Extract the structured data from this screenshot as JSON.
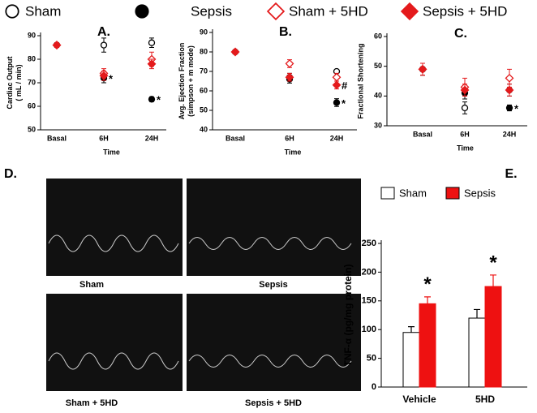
{
  "chart_data": [
    {
      "type": "point",
      "title": "A.",
      "ylabel": [
        "Cardiac Output",
        "( mL / min)"
      ],
      "xlabel": "Time",
      "categories": [
        "Basal",
        "6H",
        "24H"
      ],
      "ylim": [
        50,
        90
      ],
      "yticks": [
        50,
        60,
        70,
        80,
        90
      ],
      "series": [
        {
          "name": "Sham",
          "color": "#000000",
          "marker": "circle-open",
          "values": [
            86,
            86,
            87
          ],
          "errors": [
            1,
            3,
            2
          ]
        },
        {
          "name": "Sepsis",
          "color": "#000000",
          "marker": "circle",
          "values": [
            86,
            72,
            63
          ],
          "errors": [
            1,
            2,
            1
          ]
        },
        {
          "name": "Sham + 5HD",
          "color": "#e41a1c",
          "marker": "diamond-open",
          "values": [
            86,
            74,
            80
          ],
          "errors": [
            1,
            2,
            3
          ]
        },
        {
          "name": "Sepsis + 5HD",
          "color": "#e41a1c",
          "marker": "diamond",
          "values": [
            86,
            73,
            78
          ],
          "errors": [
            1,
            2,
            2
          ]
        }
      ],
      "annotations": [
        {
          "text": "*",
          "series": "Sepsis",
          "category": "6H"
        },
        {
          "text": "*",
          "series": "Sepsis",
          "category": "24H"
        }
      ]
    },
    {
      "type": "point",
      "title": "B.",
      "ylabel": [
        "Avg. Ejection Fraction",
        "(simpson + m mode)"
      ],
      "xlabel": "Time",
      "categories": [
        "Basal",
        "6H",
        "24H"
      ],
      "ylim": [
        40,
        90
      ],
      "yticks": [
        40,
        50,
        60,
        70,
        80,
        90
      ],
      "series": [
        {
          "name": "Sham",
          "color": "#000000",
          "marker": "circle-open",
          "values": [
            80,
            67,
            70
          ],
          "errors": [
            1,
            2,
            1
          ]
        },
        {
          "name": "Sepsis",
          "color": "#000000",
          "marker": "circle",
          "values": [
            80,
            66,
            54
          ],
          "errors": [
            1,
            2,
            2
          ]
        },
        {
          "name": "Sham + 5HD",
          "color": "#e41a1c",
          "marker": "diamond-open",
          "values": [
            80,
            74,
            67
          ],
          "errors": [
            1,
            2,
            2
          ]
        },
        {
          "name": "Sepsis + 5HD",
          "color": "#e41a1c",
          "marker": "diamond",
          "values": [
            80,
            67,
            63
          ],
          "errors": [
            1,
            2,
            2
          ]
        }
      ],
      "annotations": [
        {
          "text": "#",
          "series": "Sepsis + 5HD",
          "category": "24H"
        },
        {
          "text": "*",
          "series": "Sepsis",
          "category": "24H"
        }
      ]
    },
    {
      "type": "point",
      "title": "C.",
      "ylabel": [
        "Fractional Shortening"
      ],
      "xlabel": "Time",
      "categories": [
        "Basal",
        "6H",
        "24H"
      ],
      "ylim": [
        30,
        60
      ],
      "yticks": [
        30,
        40,
        50,
        60
      ],
      "series": [
        {
          "name": "Sham",
          "color": "#000000",
          "marker": "circle-open",
          "values": [
            49,
            36,
            42
          ],
          "errors": [
            2,
            2,
            2
          ]
        },
        {
          "name": "Sepsis",
          "color": "#000000",
          "marker": "circle",
          "values": [
            49,
            41,
            36
          ],
          "errors": [
            2,
            2,
            1
          ]
        },
        {
          "name": "Sham + 5HD",
          "color": "#e41a1c",
          "marker": "diamond-open",
          "values": [
            49,
            43,
            46
          ],
          "errors": [
            2,
            3,
            3
          ]
        },
        {
          "name": "Sepsis + 5HD",
          "color": "#e41a1c",
          "marker": "diamond",
          "values": [
            49,
            42,
            42
          ],
          "errors": [
            2,
            2,
            2
          ]
        }
      ],
      "annotations": [
        {
          "text": "*",
          "series": "Sepsis",
          "category": "24H"
        }
      ]
    },
    {
      "type": "bar",
      "title": "E.",
      "ylabel": [
        "TNF-α (pg/mg protein)"
      ],
      "categories": [
        "Vehicle",
        "5HD"
      ],
      "ylim": [
        0,
        250
      ],
      "yticks": [
        0,
        50,
        100,
        150,
        200,
        250
      ],
      "series": [
        {
          "name": "Sham",
          "color": "#ffffff",
          "values": [
            95,
            120
          ],
          "errors": [
            10,
            15
          ]
        },
        {
          "name": "Sepsis",
          "color": "#ee1111",
          "values": [
            145,
            175
          ],
          "errors": [
            12,
            20
          ]
        }
      ],
      "annotations": [
        {
          "text": "*",
          "series": "Sepsis",
          "category": "Vehicle"
        },
        {
          "text": "*",
          "series": "Sepsis",
          "category": "5HD"
        }
      ]
    }
  ],
  "echo_panel": {
    "label": "D.",
    "captions": [
      "Sham",
      "Sepsis",
      "Sham + 5HD",
      "Sepsis + 5HD"
    ]
  }
}
